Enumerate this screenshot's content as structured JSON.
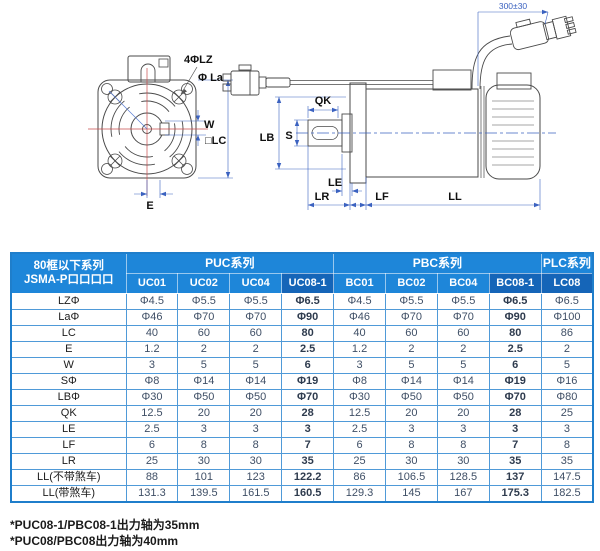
{
  "drawing": {
    "labels": {
      "holes": "4ΦLZ",
      "pilot": "Φ La",
      "w": "W",
      "lc": "□LC",
      "e": "E",
      "qk": "QK",
      "s": "S",
      "lb": "LB",
      "le": "LE",
      "lr": "LR",
      "lf": "LF",
      "ll": "LL",
      "cable": "300±30"
    }
  },
  "table": {
    "corner_header_line1": "80框以下系列",
    "corner_header_line2": "JSMA-P口口口口",
    "groups": [
      {
        "label": "PUC系列",
        "span": 4
      },
      {
        "label": "PBC系列",
        "span": 4
      },
      {
        "label": "PLC系列",
        "span": 1
      }
    ],
    "columns": [
      "UC01",
      "UC02",
      "UC04",
      "UC08-1",
      "BC01",
      "BC02",
      "BC04",
      "BC08-1",
      "LC08"
    ],
    "header_dark_columns": [
      3,
      7,
      8
    ],
    "bold_value_columns": [
      3,
      7
    ],
    "rows": [
      {
        "label": "LZΦ",
        "values": [
          "Φ4.5",
          "Φ5.5",
          "Φ5.5",
          "Φ6.5",
          "Φ4.5",
          "Φ5.5",
          "Φ5.5",
          "Φ6.5",
          "Φ6.5"
        ]
      },
      {
        "label": "LaΦ",
        "values": [
          "Φ46",
          "Φ70",
          "Φ70",
          "Φ90",
          "Φ46",
          "Φ70",
          "Φ70",
          "Φ90",
          "Φ100"
        ]
      },
      {
        "label": "LC",
        "values": [
          "40",
          "60",
          "60",
          "80",
          "40",
          "60",
          "60",
          "80",
          "86"
        ]
      },
      {
        "label": "E",
        "values": [
          "1.2",
          "2",
          "2",
          "2.5",
          "1.2",
          "2",
          "2",
          "2.5",
          "2"
        ]
      },
      {
        "label": "W",
        "values": [
          "3",
          "5",
          "5",
          "6",
          "3",
          "5",
          "5",
          "6",
          "5"
        ]
      },
      {
        "label": "SΦ",
        "values": [
          "Φ8",
          "Φ14",
          "Φ14",
          "Φ19",
          "Φ8",
          "Φ14",
          "Φ14",
          "Φ19",
          "Φ16"
        ]
      },
      {
        "label": "LBΦ",
        "values": [
          "Φ30",
          "Φ50",
          "Φ50",
          "Φ70",
          "Φ30",
          "Φ50",
          "Φ50",
          "Φ70",
          "Φ80"
        ]
      },
      {
        "label": "QK",
        "values": [
          "12.5",
          "20",
          "20",
          "28",
          "12.5",
          "20",
          "20",
          "28",
          "25"
        ]
      },
      {
        "label": "LE",
        "values": [
          "2.5",
          "3",
          "3",
          "3",
          "2.5",
          "3",
          "3",
          "3",
          "3"
        ]
      },
      {
        "label": "LF",
        "values": [
          "6",
          "8",
          "8",
          "7",
          "6",
          "8",
          "8",
          "7",
          "8"
        ]
      },
      {
        "label": "LR",
        "values": [
          "25",
          "30",
          "30",
          "35",
          "25",
          "30",
          "30",
          "35",
          "35"
        ]
      },
      {
        "label": "LL(不带煞车)",
        "values": [
          "88",
          "101",
          "123",
          "122.2",
          "86",
          "106.5",
          "128.5",
          "137",
          "147.5"
        ]
      },
      {
        "label": "LL(带煞车)",
        "values": [
          "131.3",
          "139.5",
          "161.5",
          "160.5",
          "129.3",
          "145",
          "167",
          "175.3",
          "182.5"
        ]
      }
    ]
  },
  "footnotes": [
    "*PUC08-1/PBC08-1出力轴为35mm",
    "*PUC08/PBC08出力轴为40mm"
  ],
  "colors": {
    "header_blue": "#1e86d9",
    "header_blue_dark": "#1565b8",
    "border_blue": "#4f9ad8",
    "outer_blue": "#1f7ecb",
    "value_text": "#3f4f66"
  }
}
